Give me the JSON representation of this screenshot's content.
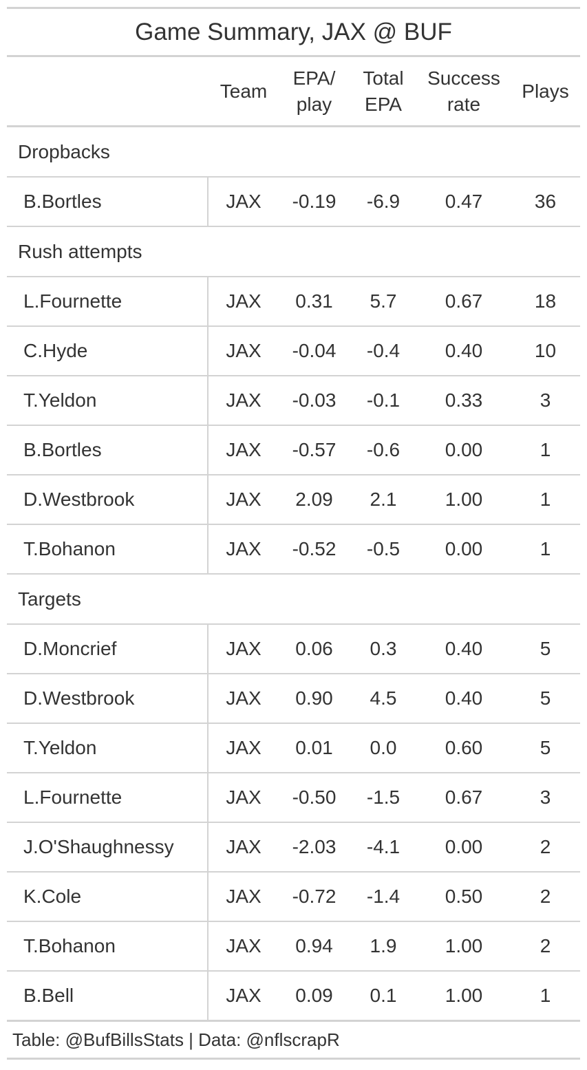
{
  "title": "Game Summary, JAX @ BUF",
  "columns": {
    "team": "Team",
    "epa_play_1": "EPA/",
    "epa_play_2": "play",
    "total_epa_1": "Total",
    "total_epa_2": "EPA",
    "success_1": "Success",
    "success_2": "rate",
    "plays": "Plays"
  },
  "chart_data": {
    "type": "table",
    "title": "Game Summary, JAX @ BUF",
    "columns": [
      "Team",
      "EPA/ play",
      "Total EPA",
      "Success rate",
      "Plays"
    ],
    "groups": [
      {
        "label": "Dropbacks",
        "rows": [
          {
            "name": "B.Bortles",
            "team": "JAX",
            "epa_play": "-0.19",
            "total_epa": "-6.9",
            "success_rate": "0.47",
            "plays": "36"
          }
        ]
      },
      {
        "label": "Rush attempts",
        "rows": [
          {
            "name": "L.Fournette",
            "team": "JAX",
            "epa_play": "0.31",
            "total_epa": "5.7",
            "success_rate": "0.67",
            "plays": "18"
          },
          {
            "name": "C.Hyde",
            "team": "JAX",
            "epa_play": "-0.04",
            "total_epa": "-0.4",
            "success_rate": "0.40",
            "plays": "10"
          },
          {
            "name": "T.Yeldon",
            "team": "JAX",
            "epa_play": "-0.03",
            "total_epa": "-0.1",
            "success_rate": "0.33",
            "plays": "3"
          },
          {
            "name": "B.Bortles",
            "team": "JAX",
            "epa_play": "-0.57",
            "total_epa": "-0.6",
            "success_rate": "0.00",
            "plays": "1"
          },
          {
            "name": "D.Westbrook",
            "team": "JAX",
            "epa_play": "2.09",
            "total_epa": "2.1",
            "success_rate": "1.00",
            "plays": "1"
          },
          {
            "name": "T.Bohanon",
            "team": "JAX",
            "epa_play": "-0.52",
            "total_epa": "-0.5",
            "success_rate": "0.00",
            "plays": "1"
          }
        ]
      },
      {
        "label": "Targets",
        "rows": [
          {
            "name": "D.Moncrief",
            "team": "JAX",
            "epa_play": "0.06",
            "total_epa": "0.3",
            "success_rate": "0.40",
            "plays": "5"
          },
          {
            "name": "D.Westbrook",
            "team": "JAX",
            "epa_play": "0.90",
            "total_epa": "4.5",
            "success_rate": "0.40",
            "plays": "5"
          },
          {
            "name": "T.Yeldon",
            "team": "JAX",
            "epa_play": "0.01",
            "total_epa": "0.0",
            "success_rate": "0.60",
            "plays": "5"
          },
          {
            "name": "L.Fournette",
            "team": "JAX",
            "epa_play": "-0.50",
            "total_epa": "-1.5",
            "success_rate": "0.67",
            "plays": "3"
          },
          {
            "name": "J.O'Shaughnessy",
            "team": "JAX",
            "epa_play": "-2.03",
            "total_epa": "-4.1",
            "success_rate": "0.00",
            "plays": "2"
          },
          {
            "name": "K.Cole",
            "team": "JAX",
            "epa_play": "-0.72",
            "total_epa": "-1.4",
            "success_rate": "0.50",
            "plays": "2"
          },
          {
            "name": "T.Bohanon",
            "team": "JAX",
            "epa_play": "0.94",
            "total_epa": "1.9",
            "success_rate": "1.00",
            "plays": "2"
          },
          {
            "name": "B.Bell",
            "team": "JAX",
            "epa_play": "0.09",
            "total_epa": "0.1",
            "success_rate": "1.00",
            "plays": "1"
          }
        ]
      }
    ]
  },
  "source": "Table: @BufBillsStats | Data: @nflscrapR",
  "colors": {
    "text": "#333333",
    "rule": "#d3d3d3",
    "background": "#ffffff"
  }
}
